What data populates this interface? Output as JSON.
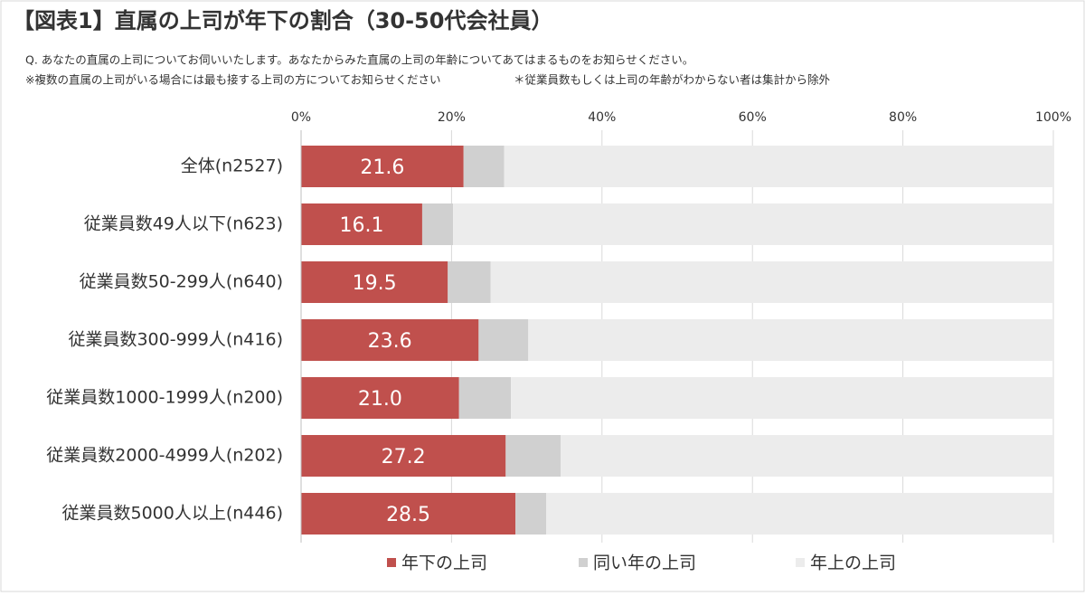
{
  "chart_data": {
    "type": "bar",
    "orientation": "horizontal",
    "stacked": true,
    "title": "【図表1】直属の上司が年下の割合（30-50代会社員）",
    "question": "Q. あなたの直属の上司についてお伺いいたします。あなたからみた直属の上司の年齢についてあてはまるものをお知らせください。",
    "notes": [
      "※複数の直属の上司がいる場合には最も接する上司の方についてお知らせください",
      "＊従業員数もしくは上司の年齢がわからない者は集計から除外"
    ],
    "categories": [
      "全体(n2527)",
      "従業員数49人以下(n623)",
      "従業員数50-299人(n640)",
      "従業員数300-999人(n416)",
      "従業員数1000-1999人(n200)",
      "従業員数2000-4999人(n202)",
      "従業員数5000人以上(n446)"
    ],
    "series": [
      {
        "name": "年下の上司",
        "color": "#c0504d",
        "values": [
          21.6,
          16.1,
          19.5,
          23.6,
          21.0,
          27.2,
          28.5
        ],
        "value_labels": [
          "21.6",
          "16.1",
          "19.5",
          "23.6",
          "21.0",
          "27.2",
          "28.5"
        ]
      },
      {
        "name": "同い年の上司",
        "color": "#d0d0d0",
        "values": [
          5.4,
          4.1,
          5.7,
          6.6,
          6.9,
          7.3,
          4.1
        ]
      },
      {
        "name": "年上の上司",
        "color": "#ececec",
        "values": [
          73.0,
          79.8,
          74.8,
          69.8,
          72.1,
          65.5,
          67.4
        ]
      }
    ],
    "xlim": [
      0,
      100
    ],
    "xticks": [
      {
        "value": 0,
        "label": "0%"
      },
      {
        "value": 20,
        "label": "20%"
      },
      {
        "value": 40,
        "label": "40%"
      },
      {
        "value": 60,
        "label": "60%"
      },
      {
        "value": 80,
        "label": "80%"
      },
      {
        "value": 100,
        "label": "100%"
      }
    ],
    "grid": true,
    "legend": "bottom"
  }
}
